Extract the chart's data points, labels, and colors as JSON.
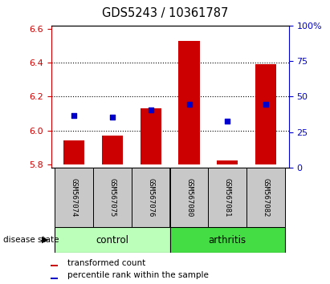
{
  "title": "GDS5243 / 10361787",
  "samples": [
    "GSM567074",
    "GSM567075",
    "GSM567076",
    "GSM567080",
    "GSM567081",
    "GSM567082"
  ],
  "groups": [
    "control",
    "control",
    "control",
    "arthritis",
    "arthritis",
    "arthritis"
  ],
  "bar_base": 5.8,
  "bar_tops": [
    5.94,
    5.97,
    6.13,
    6.53,
    5.82,
    6.39
  ],
  "percentile_values": [
    6.09,
    6.08,
    6.12,
    6.155,
    6.055,
    6.155
  ],
  "ylim_left": [
    5.78,
    6.62
  ],
  "ylim_right": [
    0,
    100
  ],
  "yticks_left": [
    5.8,
    6.0,
    6.2,
    6.4,
    6.6
  ],
  "yticks_right": [
    0,
    25,
    50,
    75,
    100
  ],
  "bar_color": "#cc0000",
  "percentile_color": "#0000cc",
  "control_color": "#bbffbb",
  "arthritis_color": "#44dd44",
  "control_label": "control",
  "arthritis_label": "arthritis",
  "disease_state_label": "disease state",
  "legend_red_label": "transformed count",
  "legend_blue_label": "percentile rank within the sample",
  "tick_label_color_left": "#cc0000",
  "tick_label_color_right": "#0000cc",
  "bar_width": 0.55,
  "group_sep_idx": 3
}
